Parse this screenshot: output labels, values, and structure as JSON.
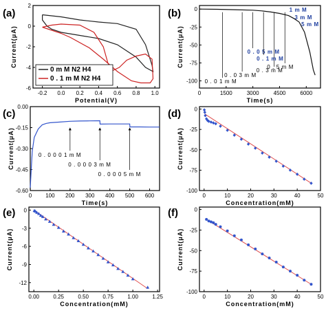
{
  "chart_data": [
    {
      "panel": "(a)",
      "type": "line",
      "xlabel": "Potential(V)",
      "ylabel": "Current(μA)",
      "xlim": [
        -0.3,
        1.05
      ],
      "ylim": [
        -6,
        2
      ],
      "xticks": [
        "-0.2",
        "0.0",
        "0.2",
        "0.4",
        "0.6",
        "0.8",
        "1.0"
      ],
      "yticks": [
        "2",
        "0",
        "-2",
        "-4",
        "-6"
      ],
      "legend": {
        "position": "bottom-left",
        "entries": [
          "0 m M N2 H4",
          "0 . 1 m M N2 H4"
        ]
      },
      "series": [
        {
          "name": "0 m M N2 H4",
          "color": "#222222",
          "x": [
            -0.2,
            -0.1,
            0.0,
            0.2,
            0.4,
            0.6,
            0.8,
            0.9,
            0.97,
            0.98,
            0.9,
            0.8,
            0.6,
            0.4,
            0.2,
            0.0,
            -0.1,
            -0.15,
            -0.2,
            -0.2
          ],
          "y": [
            1.1,
            1.0,
            0.9,
            0.6,
            0.4,
            0.25,
            -0.3,
            -1.8,
            -3.8,
            -4.4,
            -4.0,
            -3.0,
            -1.8,
            -1.2,
            -0.9,
            -0.6,
            -0.3,
            0.0,
            0.6,
            1.1
          ]
        },
        {
          "name": "0 . 1 m M N2 H4",
          "color": "#cc2222",
          "x": [
            -0.2,
            -0.1,
            0.0,
            0.2,
            0.35,
            0.45,
            0.5,
            0.55,
            0.62,
            0.7,
            0.8,
            0.9,
            0.97,
            0.98,
            0.95,
            0.85,
            0.75,
            0.6,
            0.45,
            0.3,
            0.1,
            0.0,
            -0.1,
            -0.2
          ],
          "y": [
            -0.1,
            0.1,
            0.2,
            0.1,
            -0.6,
            -2.0,
            -3.6,
            -4.3,
            -4.0,
            -3.3,
            -2.9,
            -2.7,
            -3.2,
            -5.1,
            -5.5,
            -5.5,
            -5.3,
            -4.4,
            -3.2,
            -2.1,
            -1.1,
            -0.7,
            -0.4,
            -0.1
          ]
        }
      ]
    },
    {
      "panel": "(b)",
      "type": "line",
      "xlabel": "Time(s)",
      "ylabel": "Current(μA)",
      "xlim": [
        0,
        6800
      ],
      "ylim": [
        -110,
        5
      ],
      "xticks": [
        "0",
        "1500",
        "3000",
        "4500",
        "6000"
      ],
      "yticks": [
        "0",
        "-25",
        "-50",
        "-75",
        "-100"
      ],
      "series": [
        {
          "name": "",
          "color": "#111111",
          "x": [
            0,
            1000,
            2000,
            3000,
            3500,
            4000,
            4500,
            5000,
            5300,
            5600,
            5900,
            6200,
            6400,
            6500
          ],
          "y": [
            0,
            -0.3,
            -0.8,
            -1.5,
            -2.5,
            -4,
            -6,
            -9,
            -13,
            -18,
            -32,
            -60,
            -85,
            -92
          ]
        }
      ],
      "annotations_black": [
        {
          "text": "0 . 0 1 m M",
          "x": 1300
        },
        {
          "text": "0 . 0 3 m M",
          "x": 2400
        },
        {
          "text": "0 . 3 m M",
          "x": 4200
        },
        {
          "text": "0 . 5 m M",
          "x": 4800
        }
      ],
      "annotations_blue": [
        {
          "text": "0 . 0 5 m M",
          "x": 3000
        },
        {
          "text": "0 . 1 m M",
          "x": 3600
        },
        {
          "text": "1 m M",
          "x": 5200
        },
        {
          "text": "3 m M",
          "x": 5500
        },
        {
          "text": "5 m M",
          "x": 5800
        }
      ]
    },
    {
      "panel": "(c)",
      "type": "line",
      "xlabel": "Time(s)",
      "ylabel": "Current(μA)",
      "xlim": [
        0,
        650
      ],
      "ylim": [
        -0.6,
        0.0
      ],
      "xticks": [
        "0",
        "100",
        "200",
        "300",
        "400",
        "500",
        "600"
      ],
      "yticks": [
        "0.00",
        "-0.15",
        "-0.30",
        "-0.45",
        "-0.60"
      ],
      "series": [
        {
          "name": "",
          "color": "#3355cc",
          "x": [
            0,
            5,
            10,
            20,
            40,
            60,
            80,
            100,
            150,
            200,
            250,
            300,
            350,
            351,
            400,
            450,
            500,
            501,
            550,
            600,
            650
          ],
          "y": [
            -0.58,
            -0.45,
            -0.32,
            -0.22,
            -0.16,
            -0.13,
            -0.12,
            -0.115,
            -0.11,
            -0.105,
            -0.103,
            -0.102,
            -0.101,
            -0.125,
            -0.124,
            -0.124,
            -0.124,
            -0.145,
            -0.145,
            -0.146,
            -0.146
          ]
        }
      ],
      "annotations": [
        {
          "text": "0 . 0 0 0 1 m M",
          "x": 200
        },
        {
          "text": "0 . 0 0 0 3 m M",
          "x": 350
        },
        {
          "text": "0 . 0 0 0 5 m M",
          "x": 500
        }
      ]
    },
    {
      "panel": "(d)",
      "type": "scatter",
      "xlabel": "Concentration(mM)",
      "ylabel": "Current(μA)",
      "xlim": [
        -2,
        50
      ],
      "ylim": [
        -100,
        3
      ],
      "xticks": [
        "0",
        "10",
        "20",
        "30",
        "40",
        "50"
      ],
      "yticks": [
        "0",
        "-25",
        "-50",
        "-75",
        "-100"
      ],
      "series": [
        {
          "name": "",
          "color": "#3355cc",
          "x": [
            0.1,
            0.3,
            0.5,
            1,
            1.5,
            2,
            3,
            4,
            5,
            7,
            10,
            13,
            16,
            19,
            22,
            25,
            28,
            31,
            34,
            37,
            40,
            43,
            46
          ],
          "y": [
            -1,
            -4,
            -8,
            -12,
            -14,
            -15,
            -16,
            -17,
            -18,
            -21,
            -26,
            -32,
            -37,
            -43,
            -48,
            -54,
            -59,
            -64,
            -70,
            -75,
            -80,
            -86,
            -91
          ]
        }
      ],
      "fit": {
        "color": "#e05050",
        "x": [
          0.3,
          46
        ],
        "y": [
          -6,
          -91
        ]
      }
    },
    {
      "panel": "(e)",
      "type": "scatter",
      "xlabel": "Concentration(mM)",
      "ylabel": "Current(μA)",
      "xlim": [
        -0.05,
        1.27
      ],
      "ylim": [
        -13.5,
        0.5
      ],
      "xticks": [
        "0.00",
        "0.25",
        "0.50",
        "0.75",
        "1.00",
        "1.25"
      ],
      "yticks": [
        "0",
        "-3",
        "-6",
        "-9",
        "-12"
      ],
      "series": [
        {
          "name": "",
          "color": "#3355cc",
          "x": [
            0.005,
            0.015,
            0.03,
            0.05,
            0.07,
            0.09,
            0.12,
            0.16,
            0.2,
            0.25,
            0.3,
            0.35,
            0.4,
            0.45,
            0.5,
            0.55,
            0.6,
            0.65,
            0.7,
            0.75,
            0.8,
            0.85,
            0.9,
            0.95,
            1.0,
            1.15
          ],
          "y": [
            -0.1,
            -0.2,
            -0.4,
            -0.6,
            -0.9,
            -1.1,
            -1.5,
            -1.9,
            -2.4,
            -2.9,
            -3.5,
            -4.0,
            -4.6,
            -5.1,
            -5.7,
            -6.3,
            -6.8,
            -7.4,
            -8.0,
            -8.6,
            -9.1,
            -9.7,
            -10.2,
            -10.8,
            -11.4,
            -12.8
          ]
        }
      ],
      "fit": {
        "color": "#e05050",
        "x": [
          0.0,
          1.15
        ],
        "y": [
          0.0,
          -13.0
        ]
      }
    },
    {
      "panel": "(f)",
      "type": "scatter",
      "xlabel": "Concentration(mM)",
      "ylabel": "Current(μA)",
      "xlim": [
        -2,
        50
      ],
      "ylim": [
        -100,
        3
      ],
      "xticks": [
        "0",
        "10",
        "20",
        "30",
        "40",
        "50"
      ],
      "yticks": [
        "0",
        "-25",
        "-50",
        "-75",
        "-100"
      ],
      "series": [
        {
          "name": "",
          "color": "#3355cc",
          "x": [
            1,
            2,
            3,
            4,
            5,
            7,
            10,
            13,
            16,
            19,
            22,
            25,
            28,
            31,
            34,
            37,
            40,
            43,
            46
          ],
          "y": [
            -12,
            -14,
            -15,
            -16,
            -18,
            -21,
            -26,
            -32,
            -37,
            -43,
            -48,
            -54,
            -59,
            -64,
            -70,
            -75,
            -80,
            -86,
            -91
          ]
        }
      ],
      "fit": {
        "color": "#e05050",
        "x": [
          1,
          46
        ],
        "y": [
          -12,
          -91
        ]
      }
    }
  ]
}
